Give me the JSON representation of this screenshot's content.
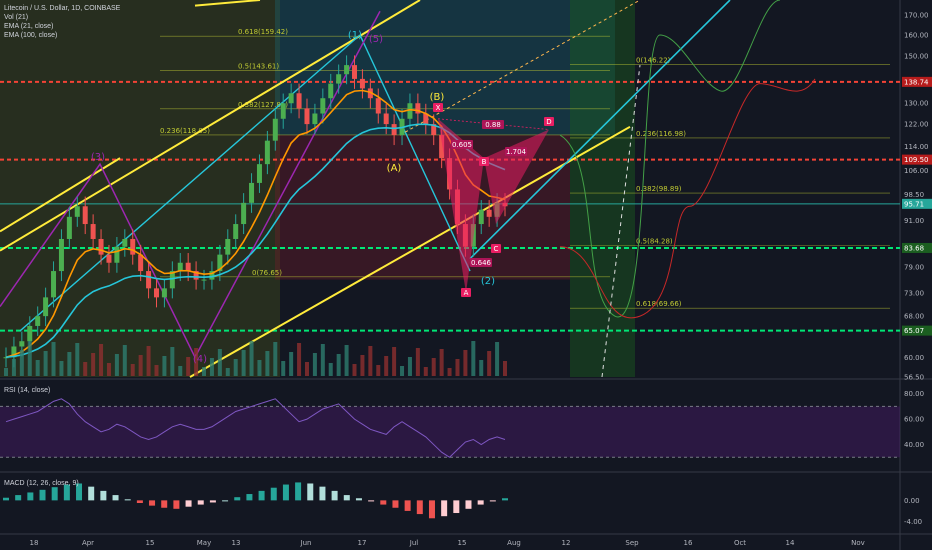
{
  "header": {
    "symbol": "Litecoin / U.S. Dollar, 1D, COINBASE",
    "vol": "Vol (21)",
    "ema21": "EMA (21, close)",
    "ema100": "EMA (100, close)"
  },
  "panes": {
    "rsi_title": "RSI (14, close)",
    "macd_title": "MACD (12, 26, close, 9)"
  },
  "colors": {
    "background": "#131722",
    "up": "#26a69a",
    "down": "#ef5350",
    "yellow": "#ffeb3b",
    "cyan": "#26c6da",
    "purple": "#9c27b0",
    "pattern": "#e91e63",
    "green_dashed": "#00e676",
    "red_dashed": "#f44336"
  },
  "chart_data": [
    {
      "type": "line",
      "title": "Litecoin / U.S. Dollar, 1D, COINBASE",
      "ylim": [
        56.5,
        178
      ],
      "y_ticks": [
        "170.00",
        "160.00",
        "150.00",
        "138.74",
        "130.00",
        "122.00",
        "114.00",
        "109.50",
        "106.00",
        "98.50",
        "95.71",
        "91.00",
        "83.68",
        "79.00",
        "73.00",
        "68.00",
        "65.07",
        "60.00",
        "56.50"
      ],
      "x_ticks": [
        "18",
        "Apr",
        "15",
        "May",
        "13",
        "Jun",
        "17",
        "Jul",
        "15",
        "Aug",
        "12",
        "Sep",
        "16",
        "Oct",
        "14",
        "Nov"
      ],
      "horizontal_levels": [
        {
          "value": 138.74,
          "label": "138.74",
          "style": "red-dashed"
        },
        {
          "value": 109.5,
          "label": "109.50",
          "style": "red-dashed"
        },
        {
          "value": 95.71,
          "label": "95.71",
          "style": "price"
        },
        {
          "value": 83.68,
          "label": "83.68",
          "style": "green-dashed"
        },
        {
          "value": 65.07,
          "label": "65.07",
          "style": "green-dashed"
        }
      ],
      "fib_levels": [
        {
          "label": "0.618(159.42)",
          "value": 159.42
        },
        {
          "label": "0.5(143.61)",
          "value": 143.61
        },
        {
          "label": "0.382(127.81)",
          "value": 127.81
        },
        {
          "label": "0.236(118.05)",
          "value": 118.05
        },
        {
          "label": "0(76.65)",
          "value": 76.65
        },
        {
          "label": "0.236(116.98)",
          "value": 116.98
        },
        {
          "label": "0.382(98.89)",
          "value": 98.89
        },
        {
          "label": "0.5(84.28)",
          "value": 84.28
        },
        {
          "label": "0.618(69.66)",
          "value": 69.66
        },
        {
          "label": "0(146.22)",
          "value": 146.22
        }
      ],
      "annotations": [
        "(1)",
        "(2)",
        "(3)",
        "(4)",
        "(5)",
        "(A)",
        "(B)",
        "X",
        "A",
        "B",
        "C",
        "D",
        "0.605",
        "0.88",
        "1.704",
        "0.646"
      ],
      "close_series": [
        60,
        62,
        63,
        66,
        68,
        72,
        78,
        86,
        92,
        95,
        90,
        86,
        82,
        80,
        84,
        86,
        82,
        78,
        74,
        72,
        74,
        78,
        80,
        78,
        76,
        76,
        78,
        82,
        86,
        90,
        96,
        102,
        108,
        116,
        124,
        130,
        134,
        128,
        122,
        126,
        132,
        138,
        142,
        146,
        140,
        136,
        132,
        126,
        122,
        118,
        124,
        130,
        126,
        122,
        118,
        110,
        100,
        90,
        84,
        90,
        94,
        92,
        96,
        95
      ]
    },
    {
      "type": "line",
      "title": "RSI (14, close)",
      "y_ticks": [
        "80.00",
        "60.00",
        "40.00"
      ],
      "levels": [
        70,
        30
      ],
      "values": [
        58,
        60,
        62,
        64,
        66,
        70,
        74,
        76,
        72,
        64,
        58,
        54,
        50,
        52,
        56,
        54,
        50,
        46,
        44,
        46,
        50,
        54,
        56,
        54,
        52,
        52,
        54,
        58,
        62,
        66,
        68,
        70,
        72,
        74,
        76,
        70,
        64,
        58,
        60,
        64,
        68,
        70,
        72,
        66,
        60,
        56,
        52,
        50,
        48,
        54,
        58,
        54,
        50,
        46,
        40,
        34,
        30,
        36,
        42,
        44,
        40,
        44,
        46,
        44
      ]
    },
    {
      "type": "bar",
      "title": "MACD (12, 26, close, 9)",
      "y_ticks": [
        "0.00",
        "-4.00"
      ],
      "values": [
        0.5,
        1,
        1.5,
        2,
        2.5,
        3,
        3.2,
        2.6,
        1.8,
        1,
        0.2,
        -0.5,
        -1,
        -1.4,
        -1.6,
        -1.2,
        -0.8,
        -0.4,
        0,
        0.6,
        1.2,
        1.8,
        2.4,
        3,
        3.4,
        3.2,
        2.6,
        1.8,
        1,
        0.4,
        -0.2,
        -0.8,
        -1.4,
        -2,
        -2.6,
        -3.4,
        -3,
        -2.4,
        -1.6,
        -0.8,
        -0.2,
        0.4
      ]
    }
  ]
}
